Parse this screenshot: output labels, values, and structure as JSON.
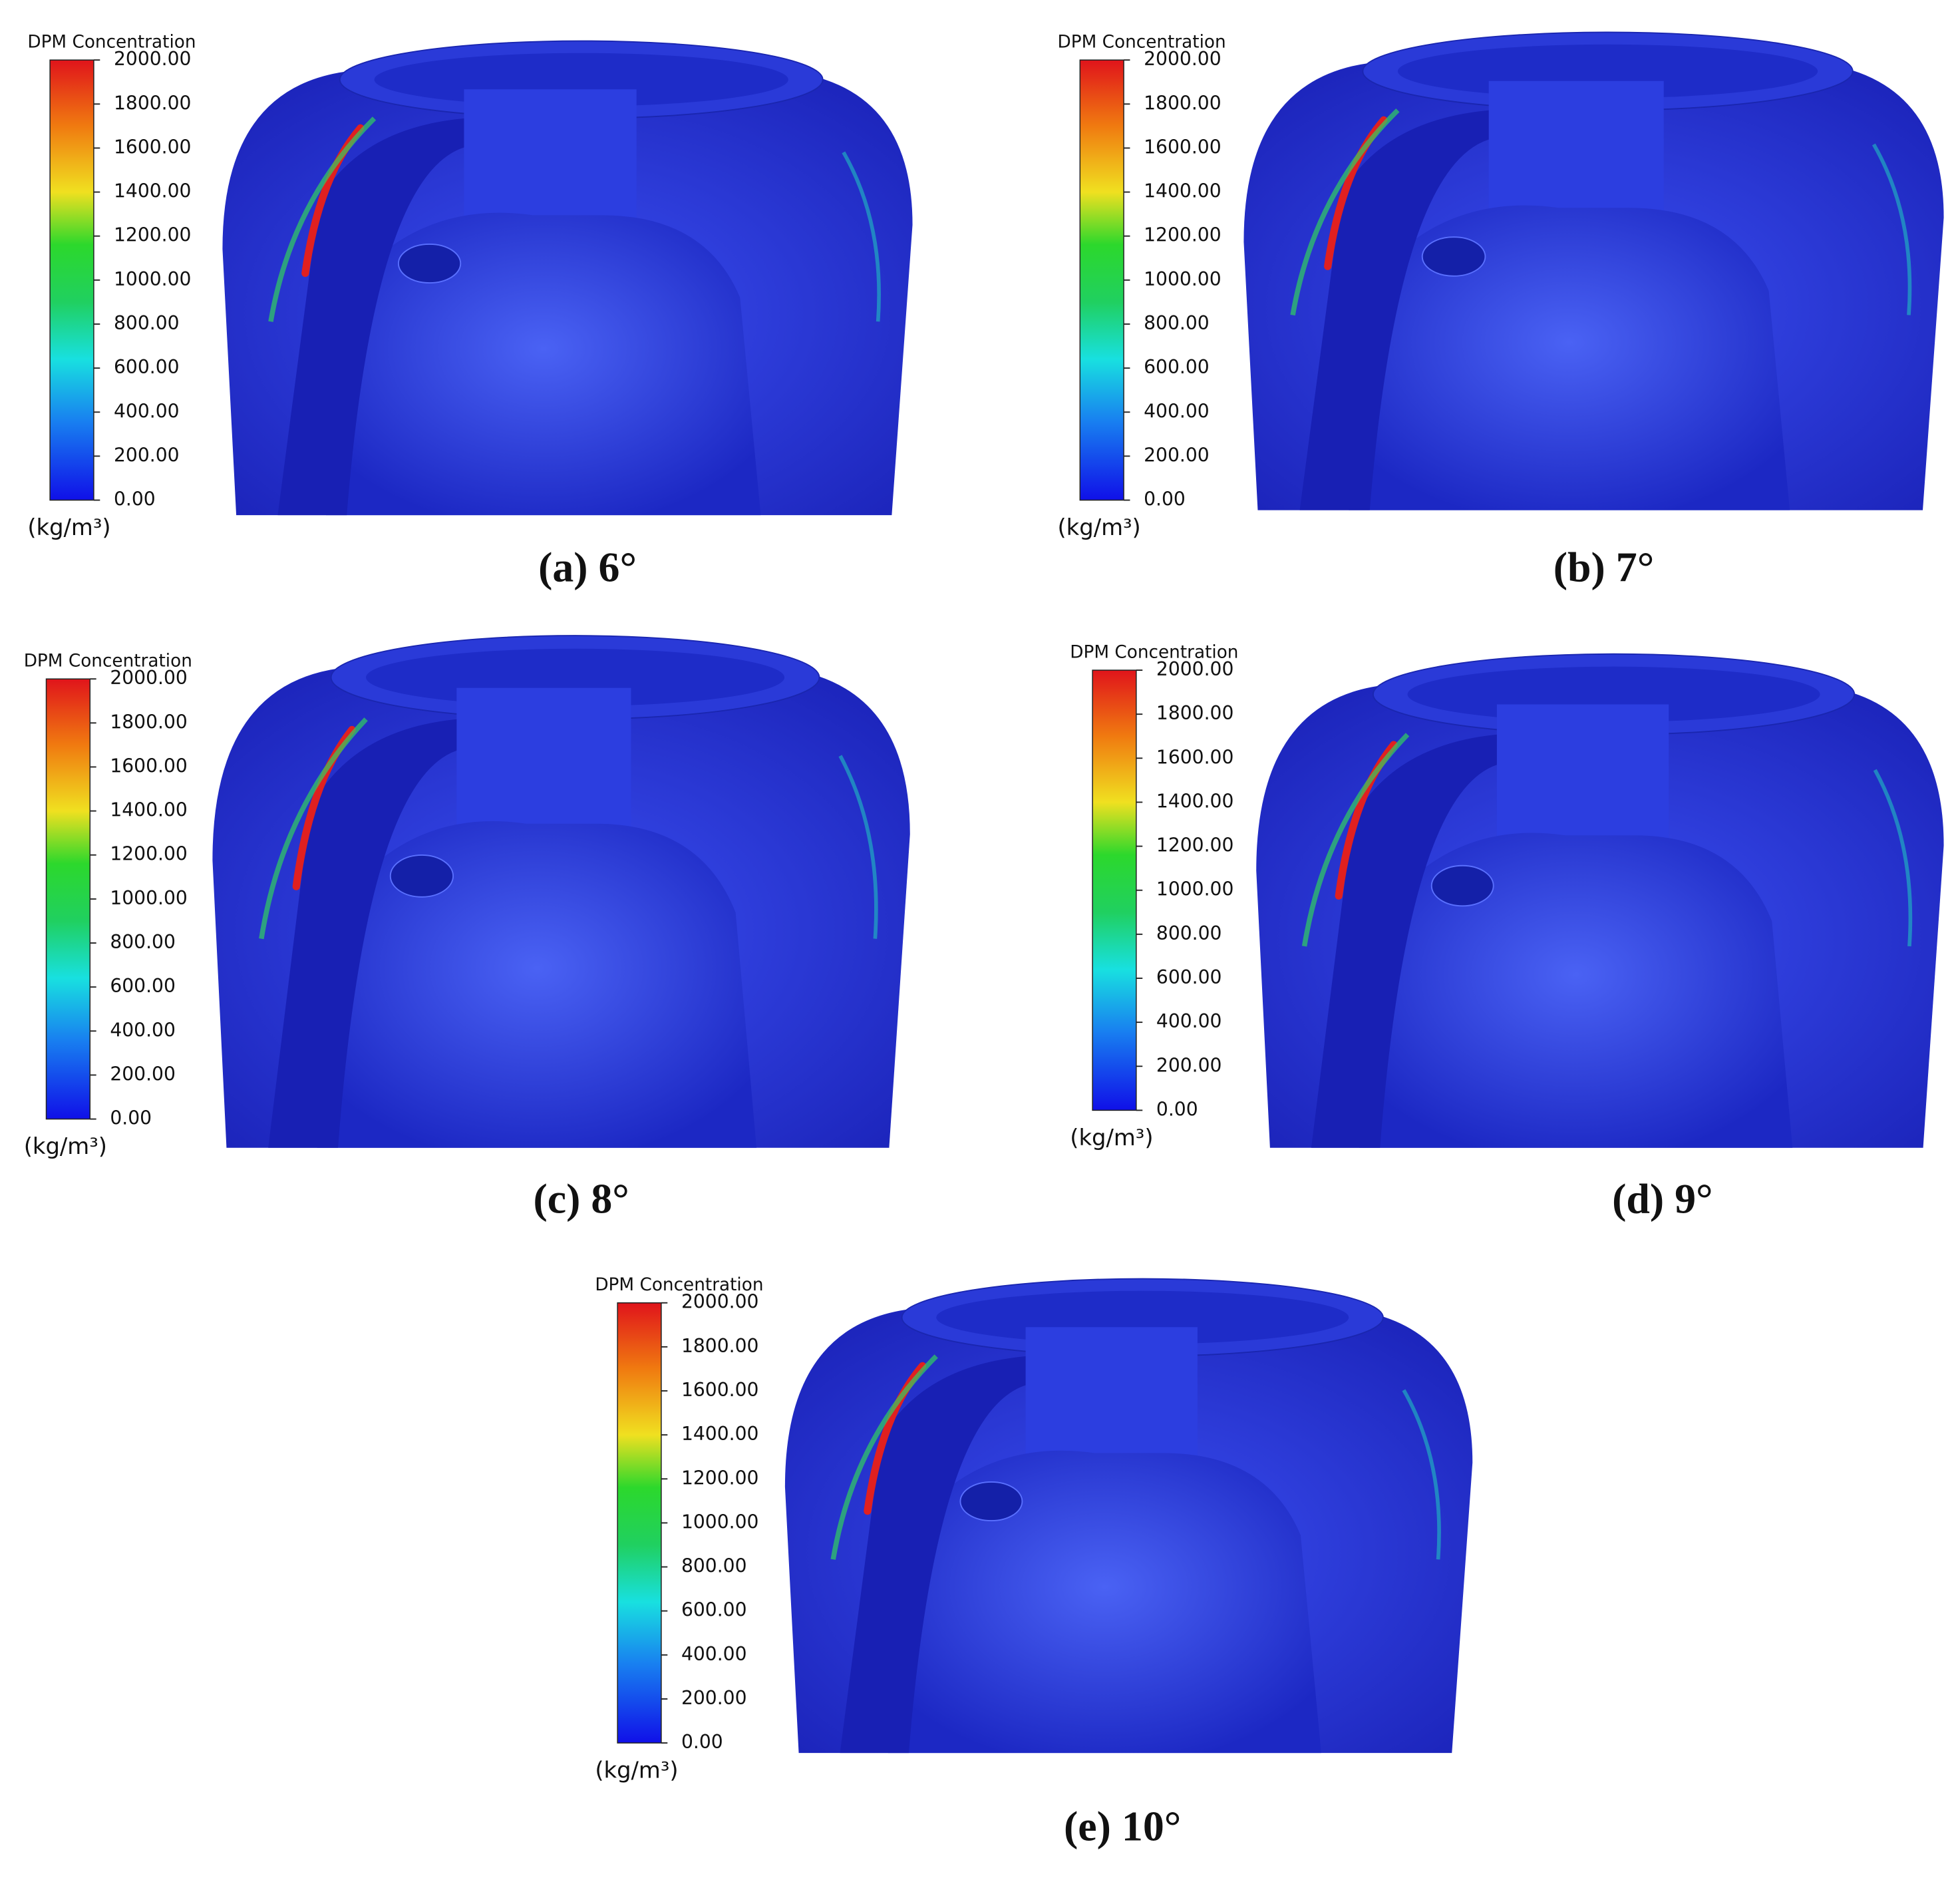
{
  "panels": [
    {
      "legend_title": "DPM Concentration",
      "ticks": [
        "2000.00",
        "1800.00",
        "1600.00",
        "1400.00",
        "1200.00",
        "1000.00",
        "800.00",
        "600.00",
        "400.00",
        "200.00",
        "0.00"
      ],
      "unit": "(kg/m³)",
      "caption": "(a) 6°"
    },
    {
      "legend_title": "DPM Concentration",
      "ticks": [
        "2000.00",
        "1800.00",
        "1600.00",
        "1400.00",
        "1200.00",
        "1000.00",
        "800.00",
        "600.00",
        "400.00",
        "200.00",
        "0.00"
      ],
      "unit": "(kg/m³)",
      "caption": "(b) 7°"
    },
    {
      "legend_title": "DPM Concentration",
      "ticks": [
        "2000.00",
        "1800.00",
        "1600.00",
        "1400.00",
        "1200.00",
        "1000.00",
        "800.00",
        "600.00",
        "400.00",
        "200.00",
        "0.00"
      ],
      "unit": "(kg/m³)",
      "caption": "(c) 8°"
    },
    {
      "legend_title": "DPM Concentration",
      "ticks": [
        "2000.00",
        "1800.00",
        "1600.00",
        "1400.00",
        "1200.00",
        "1000.00",
        "800.00",
        "600.00",
        "400.00",
        "200.00",
        "0.00"
      ],
      "unit": "(kg/m³)",
      "caption": "(d) 9°"
    },
    {
      "legend_title": "DPM Concentration",
      "ticks": [
        "2000.00",
        "1800.00",
        "1600.00",
        "1400.00",
        "1200.00",
        "1000.00",
        "800.00",
        "600.00",
        "400.00",
        "200.00",
        "0.00"
      ],
      "unit": "(kg/m³)",
      "caption": "(e) 10°"
    }
  ]
}
